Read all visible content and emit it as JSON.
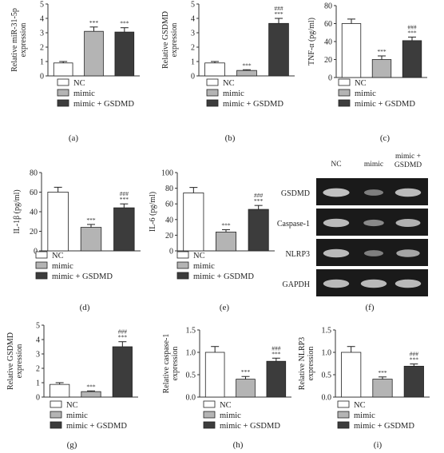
{
  "colors": {
    "NC": "#ffffff",
    "mimic": "#b4b4b4",
    "mimic_gsdmd": "#3c3c3c",
    "blot_bg": "#1a1a1a",
    "band": "#cfcfcf"
  },
  "legend_labels": [
    "NC",
    "mimic",
    "mimic + GSDMD"
  ],
  "chart_data": [
    {
      "id": "a",
      "panel_label": "(a)",
      "type": "bar",
      "ylabel": [
        "Relative miR-31-5p",
        "expression"
      ],
      "ylim": [
        0,
        5
      ],
      "yticks": [
        0,
        1,
        2,
        3,
        4,
        5
      ],
      "categories": [
        "NC",
        "mimic",
        "mimic + GSDMD"
      ],
      "values": [
        0.9,
        3.1,
        3.05
      ],
      "errors": [
        0.1,
        0.3,
        0.3
      ],
      "sig_labels": [
        [],
        [
          "***"
        ],
        [
          "***"
        ]
      ]
    },
    {
      "id": "b",
      "panel_label": "(b)",
      "type": "bar",
      "ylabel": [
        "Relative GSDMD",
        "expression"
      ],
      "ylim": [
        0,
        5
      ],
      "yticks": [
        0,
        1,
        2,
        3,
        4,
        5
      ],
      "categories": [
        "NC",
        "mimic",
        "mimic + GSDMD"
      ],
      "values": [
        0.9,
        0.38,
        3.65
      ],
      "errors": [
        0.1,
        0.05,
        0.35
      ],
      "sig_labels": [
        [],
        [
          "***"
        ],
        [
          "###",
          "***"
        ]
      ]
    },
    {
      "id": "c",
      "panel_label": "(c)",
      "type": "bar",
      "ylabel": [
        "TNF-α (pg/ml)"
      ],
      "ylim": [
        0,
        80
      ],
      "yticks": [
        0,
        20,
        40,
        60,
        80
      ],
      "categories": [
        "NC",
        "mimic",
        "mimic + GSDMD"
      ],
      "values": [
        60,
        20,
        41
      ],
      "errors": [
        5,
        4,
        4
      ],
      "sig_labels": [
        [],
        [
          "***"
        ],
        [
          "###",
          "***"
        ]
      ]
    },
    {
      "id": "d",
      "panel_label": "(d)",
      "type": "bar",
      "ylabel": [
        "IL-1β (pg/ml)"
      ],
      "ylim": [
        0,
        80
      ],
      "yticks": [
        0,
        20,
        40,
        60,
        80
      ],
      "categories": [
        "NC",
        "mimic",
        "mimic + GSDMD"
      ],
      "values": [
        60,
        24,
        44
      ],
      "errors": [
        5,
        3,
        4
      ],
      "sig_labels": [
        [],
        [
          "***"
        ],
        [
          "###",
          "***"
        ]
      ]
    },
    {
      "id": "e",
      "panel_label": "(e)",
      "type": "bar",
      "ylabel": [
        "IL-6 (pg/ml)"
      ],
      "ylim": [
        0,
        100
      ],
      "yticks": [
        0,
        20,
        40,
        60,
        80,
        100
      ],
      "categories": [
        "NC",
        "mimic",
        "mimic + GSDMD"
      ],
      "values": [
        74,
        24,
        53
      ],
      "errors": [
        7,
        3,
        5
      ],
      "sig_labels": [
        [],
        [
          "***"
        ],
        [
          "###",
          "***"
        ]
      ]
    },
    {
      "id": "g",
      "panel_label": "(g)",
      "type": "bar",
      "ylabel": [
        "Relative GSDMD",
        "expression"
      ],
      "ylim": [
        0,
        5
      ],
      "yticks": [
        0,
        1,
        2,
        3,
        4,
        5
      ],
      "categories": [
        "NC",
        "mimic",
        "mimic + GSDMD"
      ],
      "values": [
        0.88,
        0.38,
        3.5
      ],
      "errors": [
        0.12,
        0.05,
        0.35
      ],
      "sig_labels": [
        [],
        [
          "***"
        ],
        [
          "###",
          "***"
        ]
      ]
    },
    {
      "id": "h",
      "panel_label": "(h)",
      "type": "bar",
      "ylabel": [
        "Relative caspase-1",
        "expression"
      ],
      "ylim": [
        0,
        1.5
      ],
      "yticks": [
        "0.0",
        "0.5",
        "1.0",
        "1.5"
      ],
      "yticks_values": [
        0,
        0.5,
        1.0,
        1.5
      ],
      "ytick_labels": [
        "0.0",
        "0.25",
        "0.5",
        "0.75",
        "1.0",
        "1.25",
        "1.5"
      ],
      "categories": [
        "NC",
        "mimic",
        "mimic + GSDMD"
      ],
      "values": [
        1.0,
        0.4,
        0.8
      ],
      "errors": [
        0.13,
        0.06,
        0.07
      ],
      "sig_labels": [
        [],
        [
          "***"
        ],
        [
          "###",
          "***"
        ]
      ]
    },
    {
      "id": "i",
      "panel_label": "(i)",
      "type": "bar",
      "ylabel": [
        "Relative NLRP3",
        "expression"
      ],
      "ylim": [
        0,
        1.5
      ],
      "yticks": [
        "0.0",
        "0.5",
        "1.0",
        "1.5"
      ],
      "yticks_values": [
        0,
        0.5,
        1.0,
        1.5
      ],
      "ytick_labels": [
        "0.0",
        "0.25",
        "0.5",
        "0.75",
        "1.0",
        "1.25",
        "1.5"
      ],
      "categories": [
        "NC",
        "mimic",
        "mimic + GSDMD"
      ],
      "values": [
        1.0,
        0.4,
        0.69
      ],
      "errors": [
        0.13,
        0.05,
        0.05
      ],
      "sig_labels": [
        [],
        [
          "***"
        ],
        [
          "###",
          "***"
        ]
      ]
    }
  ],
  "blot": {
    "panel_label": "(f)",
    "columns": [
      "NC",
      "mimic",
      "mimic +\nGSDMD"
    ],
    "rows": [
      {
        "label": "GSDMD",
        "intensity": [
          0.95,
          0.35,
          0.9
        ]
      },
      {
        "label": "Caspase-1",
        "intensity": [
          0.9,
          0.45,
          0.8
        ]
      },
      {
        "label": "NLRP3",
        "intensity": [
          0.9,
          0.35,
          0.7
        ]
      },
      {
        "label": "GAPDH",
        "intensity": [
          0.9,
          0.9,
          0.9
        ]
      }
    ]
  }
}
